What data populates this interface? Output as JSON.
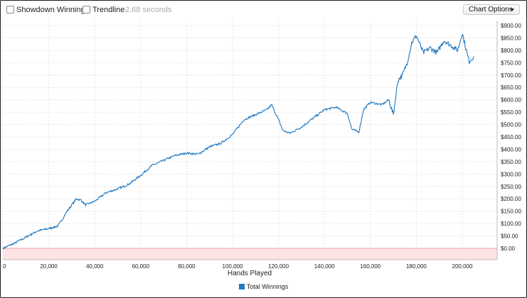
{
  "toolbar": {
    "showdown_label": "Showdown Winnings",
    "trendline_label": "Trendline",
    "elapsed": "2.68 seconds",
    "chart_options_label": "Chart Options"
  },
  "colors": {
    "series": "#1f78c1",
    "negative_band": "#fde3e3",
    "grid": "#e6e6e6"
  },
  "chart_data": {
    "type": "line",
    "xlabel": "Hands Played",
    "ylabel": "",
    "xlim": [
      0,
      215000
    ],
    "ylim": [
      -50,
      920
    ],
    "x_ticks": [
      0,
      20000,
      40000,
      60000,
      80000,
      100000,
      120000,
      140000,
      160000,
      180000,
      200000
    ],
    "x_tick_labels": [
      "0",
      "20,000",
      "40,000",
      "60,000",
      "80,000",
      "100,000",
      "120,000",
      "140,000",
      "160,000",
      "180,000",
      "200,000"
    ],
    "y_ticks": [
      0,
      50,
      100,
      150,
      200,
      250,
      300,
      350,
      400,
      450,
      500,
      550,
      600,
      650,
      700,
      750,
      800,
      850,
      900
    ],
    "y_tick_labels": [
      "$0.00",
      "$50.00",
      "$100.00",
      "$150.00",
      "$200.00",
      "$250.00",
      "$300.00",
      "$350.00",
      "$400.00",
      "$450.00",
      "$500.00",
      "$550.00",
      "$600.00",
      "$650.00",
      "$700.00",
      "$750.00",
      "$800.00",
      "$850.00",
      "$900.00"
    ],
    "legend_position": "bottom",
    "grid": true,
    "series": [
      {
        "name": "Total Winnings",
        "x": [
          0,
          5000,
          10000,
          15000,
          20000,
          24000,
          28000,
          32000,
          34000,
          36000,
          40000,
          45000,
          50000,
          55000,
          60000,
          65000,
          70000,
          75000,
          80000,
          85000,
          90000,
          95000,
          100000,
          105000,
          110000,
          115000,
          117000,
          120000,
          122000,
          125000,
          130000,
          135000,
          140000,
          145000,
          150000,
          152000,
          155000,
          157000,
          160000,
          165000,
          168000,
          170000,
          172000,
          174000,
          176000,
          178000,
          180000,
          183000,
          186000,
          189000,
          192000,
          195000,
          198000,
          200000,
          202000,
          203000,
          205000
        ],
        "y": [
          0,
          20,
          45,
          70,
          80,
          90,
          150,
          200,
          195,
          175,
          190,
          225,
          240,
          260,
          295,
          335,
          355,
          375,
          385,
          380,
          410,
          425,
          460,
          520,
          540,
          560,
          580,
          520,
          475,
          465,
          490,
          525,
          560,
          570,
          545,
          480,
          470,
          560,
          590,
          580,
          600,
          540,
          680,
          700,
          750,
          830,
          860,
          790,
          810,
          790,
          840,
          820,
          800,
          870,
          790,
          755,
          775
        ]
      }
    ]
  }
}
